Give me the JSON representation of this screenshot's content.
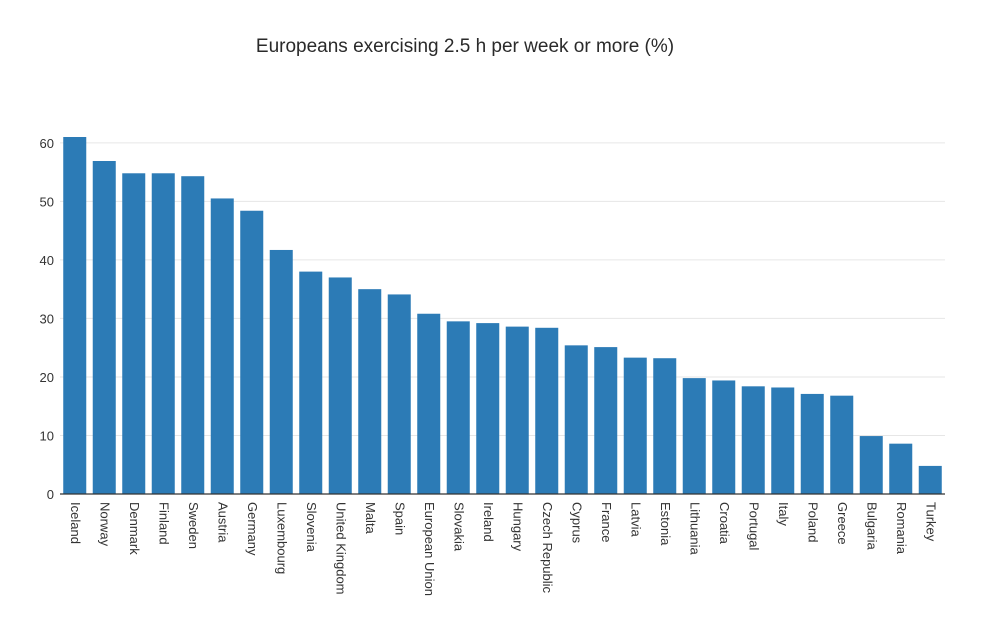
{
  "chart_data": {
    "type": "bar",
    "title": "Europeans exercising 2.5 h per week or more (%)",
    "xlabel": "",
    "ylabel": "",
    "ylim": [
      0,
      61
    ],
    "yticks": [
      0,
      10,
      20,
      30,
      40,
      50,
      60
    ],
    "grid": true,
    "colors": {
      "bar": "#2c7bb6"
    },
    "categories": [
      "Iceland",
      "Norway",
      "Denmark",
      "Finland",
      "Sweden",
      "Austria",
      "Germany",
      "Luxembourg",
      "Slovenia",
      "United Kingdom",
      "Malta",
      "Spain",
      "European Union",
      "Slovakia",
      "Ireland",
      "Hungary",
      "Czech Republic",
      "Cyprus",
      "France",
      "Latvia",
      "Estonia",
      "Lithuania",
      "Croatia",
      "Portugal",
      "Italy",
      "Poland",
      "Greece",
      "Bulgaria",
      "Romania",
      "Turkey"
    ],
    "values": [
      61.0,
      56.9,
      54.8,
      54.8,
      54.3,
      50.5,
      48.4,
      41.7,
      38.0,
      37.0,
      35.0,
      34.1,
      30.8,
      29.5,
      29.2,
      28.6,
      28.4,
      25.4,
      25.1,
      23.3,
      23.2,
      19.8,
      19.4,
      18.4,
      18.2,
      17.1,
      16.8,
      9.9,
      8.6,
      4.8
    ]
  }
}
